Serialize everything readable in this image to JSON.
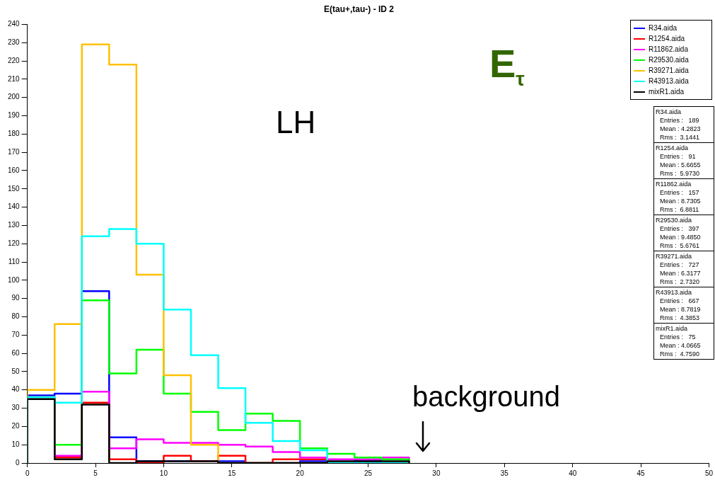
{
  "chart_data": {
    "type": "histogram",
    "title": "E(tau+,tau-) - ID 2",
    "bins": [
      0,
      2,
      4,
      6,
      8,
      10,
      12,
      14,
      16,
      18,
      20,
      22,
      24,
      26,
      28
    ],
    "series": [
      {
        "name": "R34.aida",
        "color": "#0000ff",
        "values": [
          37,
          38,
          94,
          14,
          1,
          1,
          1,
          1,
          0,
          0,
          1,
          0,
          1,
          0
        ]
      },
      {
        "name": "R1254.aida",
        "color": "#ff0000",
        "values": [
          36,
          3,
          33,
          2,
          0,
          4,
          1,
          4,
          0,
          2,
          2,
          0,
          0,
          0
        ]
      },
      {
        "name": "R11862.aida",
        "color": "#ff00ff",
        "values": [
          36,
          4,
          39,
          8,
          13,
          11,
          11,
          10,
          9,
          6,
          3,
          2,
          2,
          3
        ]
      },
      {
        "name": "R29530.aida",
        "color": "#00ff00",
        "values": [
          36,
          10,
          89,
          49,
          62,
          38,
          28,
          18,
          27,
          23,
          8,
          5,
          3,
          2
        ]
      },
      {
        "name": "R39271.aida",
        "color": "#ffc000",
        "values": [
          40,
          76,
          229,
          218,
          103,
          48,
          10,
          0,
          0,
          0,
          0,
          0,
          0,
          0
        ]
      },
      {
        "name": "R43913.aida",
        "color": "#00ffff",
        "values": [
          36,
          33,
          124,
          128,
          120,
          84,
          59,
          41,
          22,
          12,
          7,
          0,
          0,
          0
        ]
      },
      {
        "name": "mixR1.aida",
        "color": "#000000",
        "values": [
          35,
          2,
          32,
          0,
          1,
          1,
          1,
          0,
          0,
          0,
          0,
          1,
          1,
          1
        ]
      }
    ],
    "xlim": [
      0,
      50
    ],
    "xticks": [
      0,
      5,
      10,
      15,
      20,
      25,
      30,
      35,
      40,
      45,
      50
    ],
    "ylim": [
      0,
      240
    ],
    "yticks": [
      0,
      10,
      20,
      30,
      40,
      50,
      60,
      70,
      80,
      90,
      100,
      110,
      120,
      130,
      140,
      150,
      160,
      170,
      180,
      190,
      200,
      210,
      220,
      230,
      240
    ],
    "grid": false,
    "legend": "top right",
    "annotations": [
      "LH",
      "E$_{τ}$",
      "R34.aida\nEntries :   189\nMean : 4.2823\nRms :  3.1441",
      "R1254.aida\nEntries :   91\nMean : 5.6655\nRms :  5.9730",
      "R11862.aida\nEntries :   157\nMean : 8.7305\nRms :  6.8811",
      "R29530.aida\nEntries :   397\nMean : 9.4850\nRms :  5.6761",
      "R39271.aida\nEntries :   727\nMean : 6.3177\nRms :  2.7320",
      "R43913.aida\nEntries :   667\nMean : 8.7819\nRms :  4.3853",
      "mixR1.aida\nEntries :   75\nMean : 4.0665\nRms :  4.7590",
      "background"
    ]
  }
}
